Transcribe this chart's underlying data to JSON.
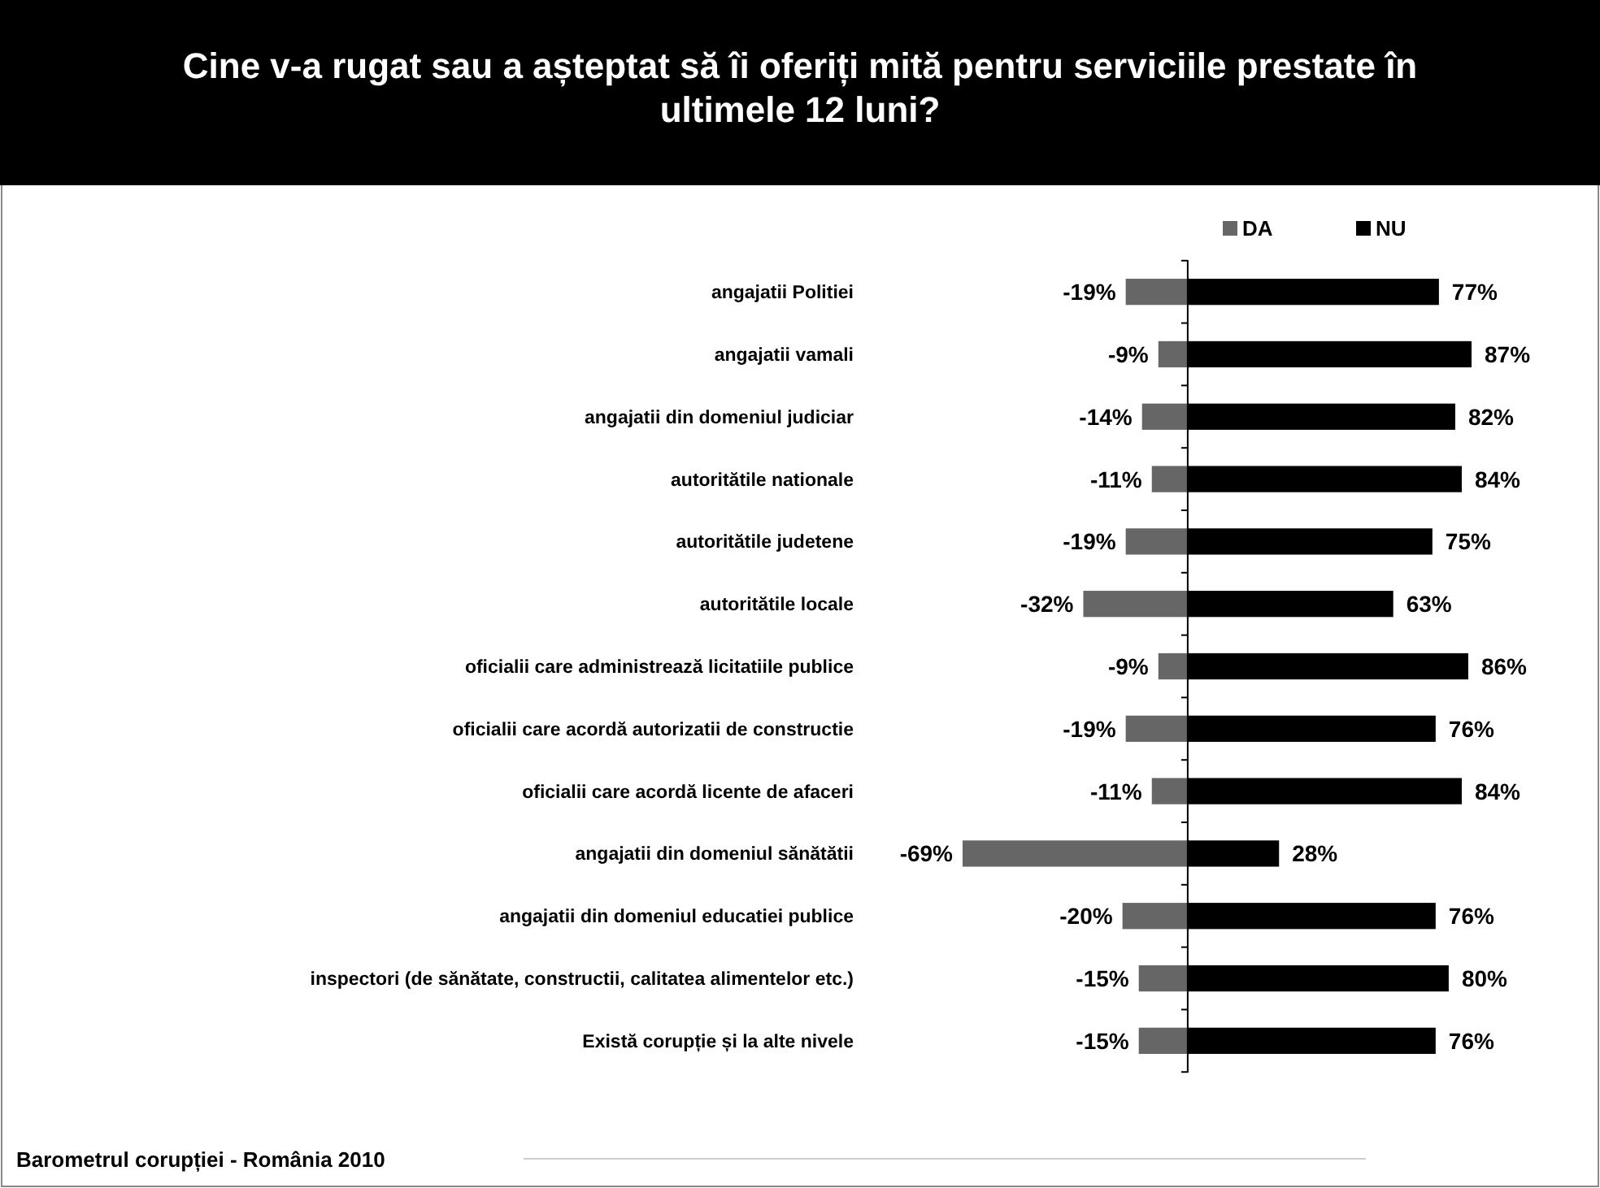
{
  "chart_data": {
    "type": "bar",
    "orientation": "horizontal",
    "stacked": true,
    "title": "Cine v-a rugat sau a așteptat să îi oferiți mită pentru serviciile prestate în ultimele 12 luni?",
    "categories": [
      "angajatii Politiei",
      "angajatii vamali",
      "angajatii din domeniul judiciar",
      "autoritătile nationale",
      "autoritătile judetene",
      "autoritătile locale",
      "oficialii care administrează licitatiile publice",
      "oficialii care acordă autorizatii de constructie",
      "oficialii care acordă licente de afaceri",
      "angajatii din domeniul sănătătii",
      "angajatii din domeniul educatiei publice",
      "inspectori (de sănătate, constructii, calitatea alimentelor etc.)",
      "Există corupție și la alte nivele"
    ],
    "series": [
      {
        "name": "DA",
        "color": "#666666",
        "values": [
          -19,
          -9,
          -14,
          -11,
          -19,
          -32,
          -9,
          -19,
          -11,
          -69,
          -20,
          -15,
          -15
        ],
        "value_labels": [
          "-19%",
          "-9%",
          "-14%",
          "-11%",
          "-19%",
          "-32%",
          "-9%",
          "-19%",
          "-11%",
          "-69%",
          "-20%",
          "-15%",
          "-15%"
        ]
      },
      {
        "name": "NU",
        "color": "#000000",
        "values": [
          77,
          87,
          82,
          84,
          75,
          63,
          86,
          76,
          84,
          28,
          76,
          80,
          76
        ],
        "value_labels": [
          "77%",
          "87%",
          "82%",
          "84%",
          "75%",
          "63%",
          "86%",
          "76%",
          "84%",
          "28%",
          "76%",
          "80%",
          "76%"
        ]
      }
    ],
    "legend": "top",
    "annotations": [
      "Barometrul corupției - România 2010"
    ]
  }
}
